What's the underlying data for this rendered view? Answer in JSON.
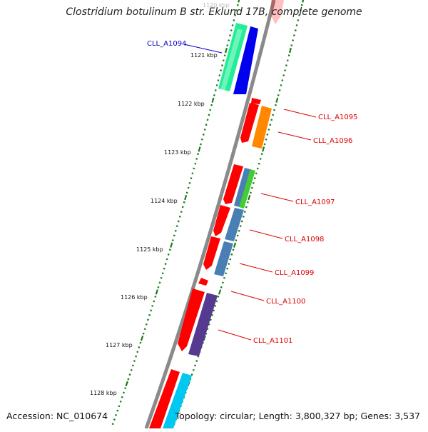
{
  "title": "Clostridium botulinum B str. Eklund 17B, complete genome",
  "accession": "Accession: NC_010674",
  "summary": "Topology: circular; Length: 3,800,327 bp; Genes: 3,537",
  "colors": {
    "backbone": "#8a8a8a",
    "tick": "#1a7a1a",
    "link_blue": "#0000cc",
    "link_red": "#dd0000",
    "gene_red": "#ff0000",
    "gene_teal": "#22ee99",
    "gene_blue": "#0000ee",
    "gene_orange": "#ff8800",
    "gene_steel": "#4a7fb5",
    "gene_green": "#44cc33",
    "gene_purple": "#553a8f",
    "gene_cyan": "#00c8f0"
  },
  "kbp_labels": [
    "1120 kbp",
    "1121 kbp",
    "1122 kbp",
    "1123 kbp",
    "1124 kbp",
    "1125 kbp",
    "1126 kbp",
    "1127 kbp",
    "1128 kbp"
  ],
  "genes": [
    {
      "label": "CLL_A1094",
      "color": "link_blue"
    },
    {
      "label": "CLL_A1095",
      "color": "link_red"
    },
    {
      "label": "CLL_A1096",
      "color": "link_red"
    },
    {
      "label": "CLL_A1097",
      "color": "link_red"
    },
    {
      "label": "CLL_A1098",
      "color": "link_red"
    },
    {
      "label": "CLL_A1099",
      "color": "link_red"
    },
    {
      "label": "CLL_A1100",
      "color": "link_red"
    },
    {
      "label": "CLL_A1101",
      "color": "link_red"
    }
  ]
}
